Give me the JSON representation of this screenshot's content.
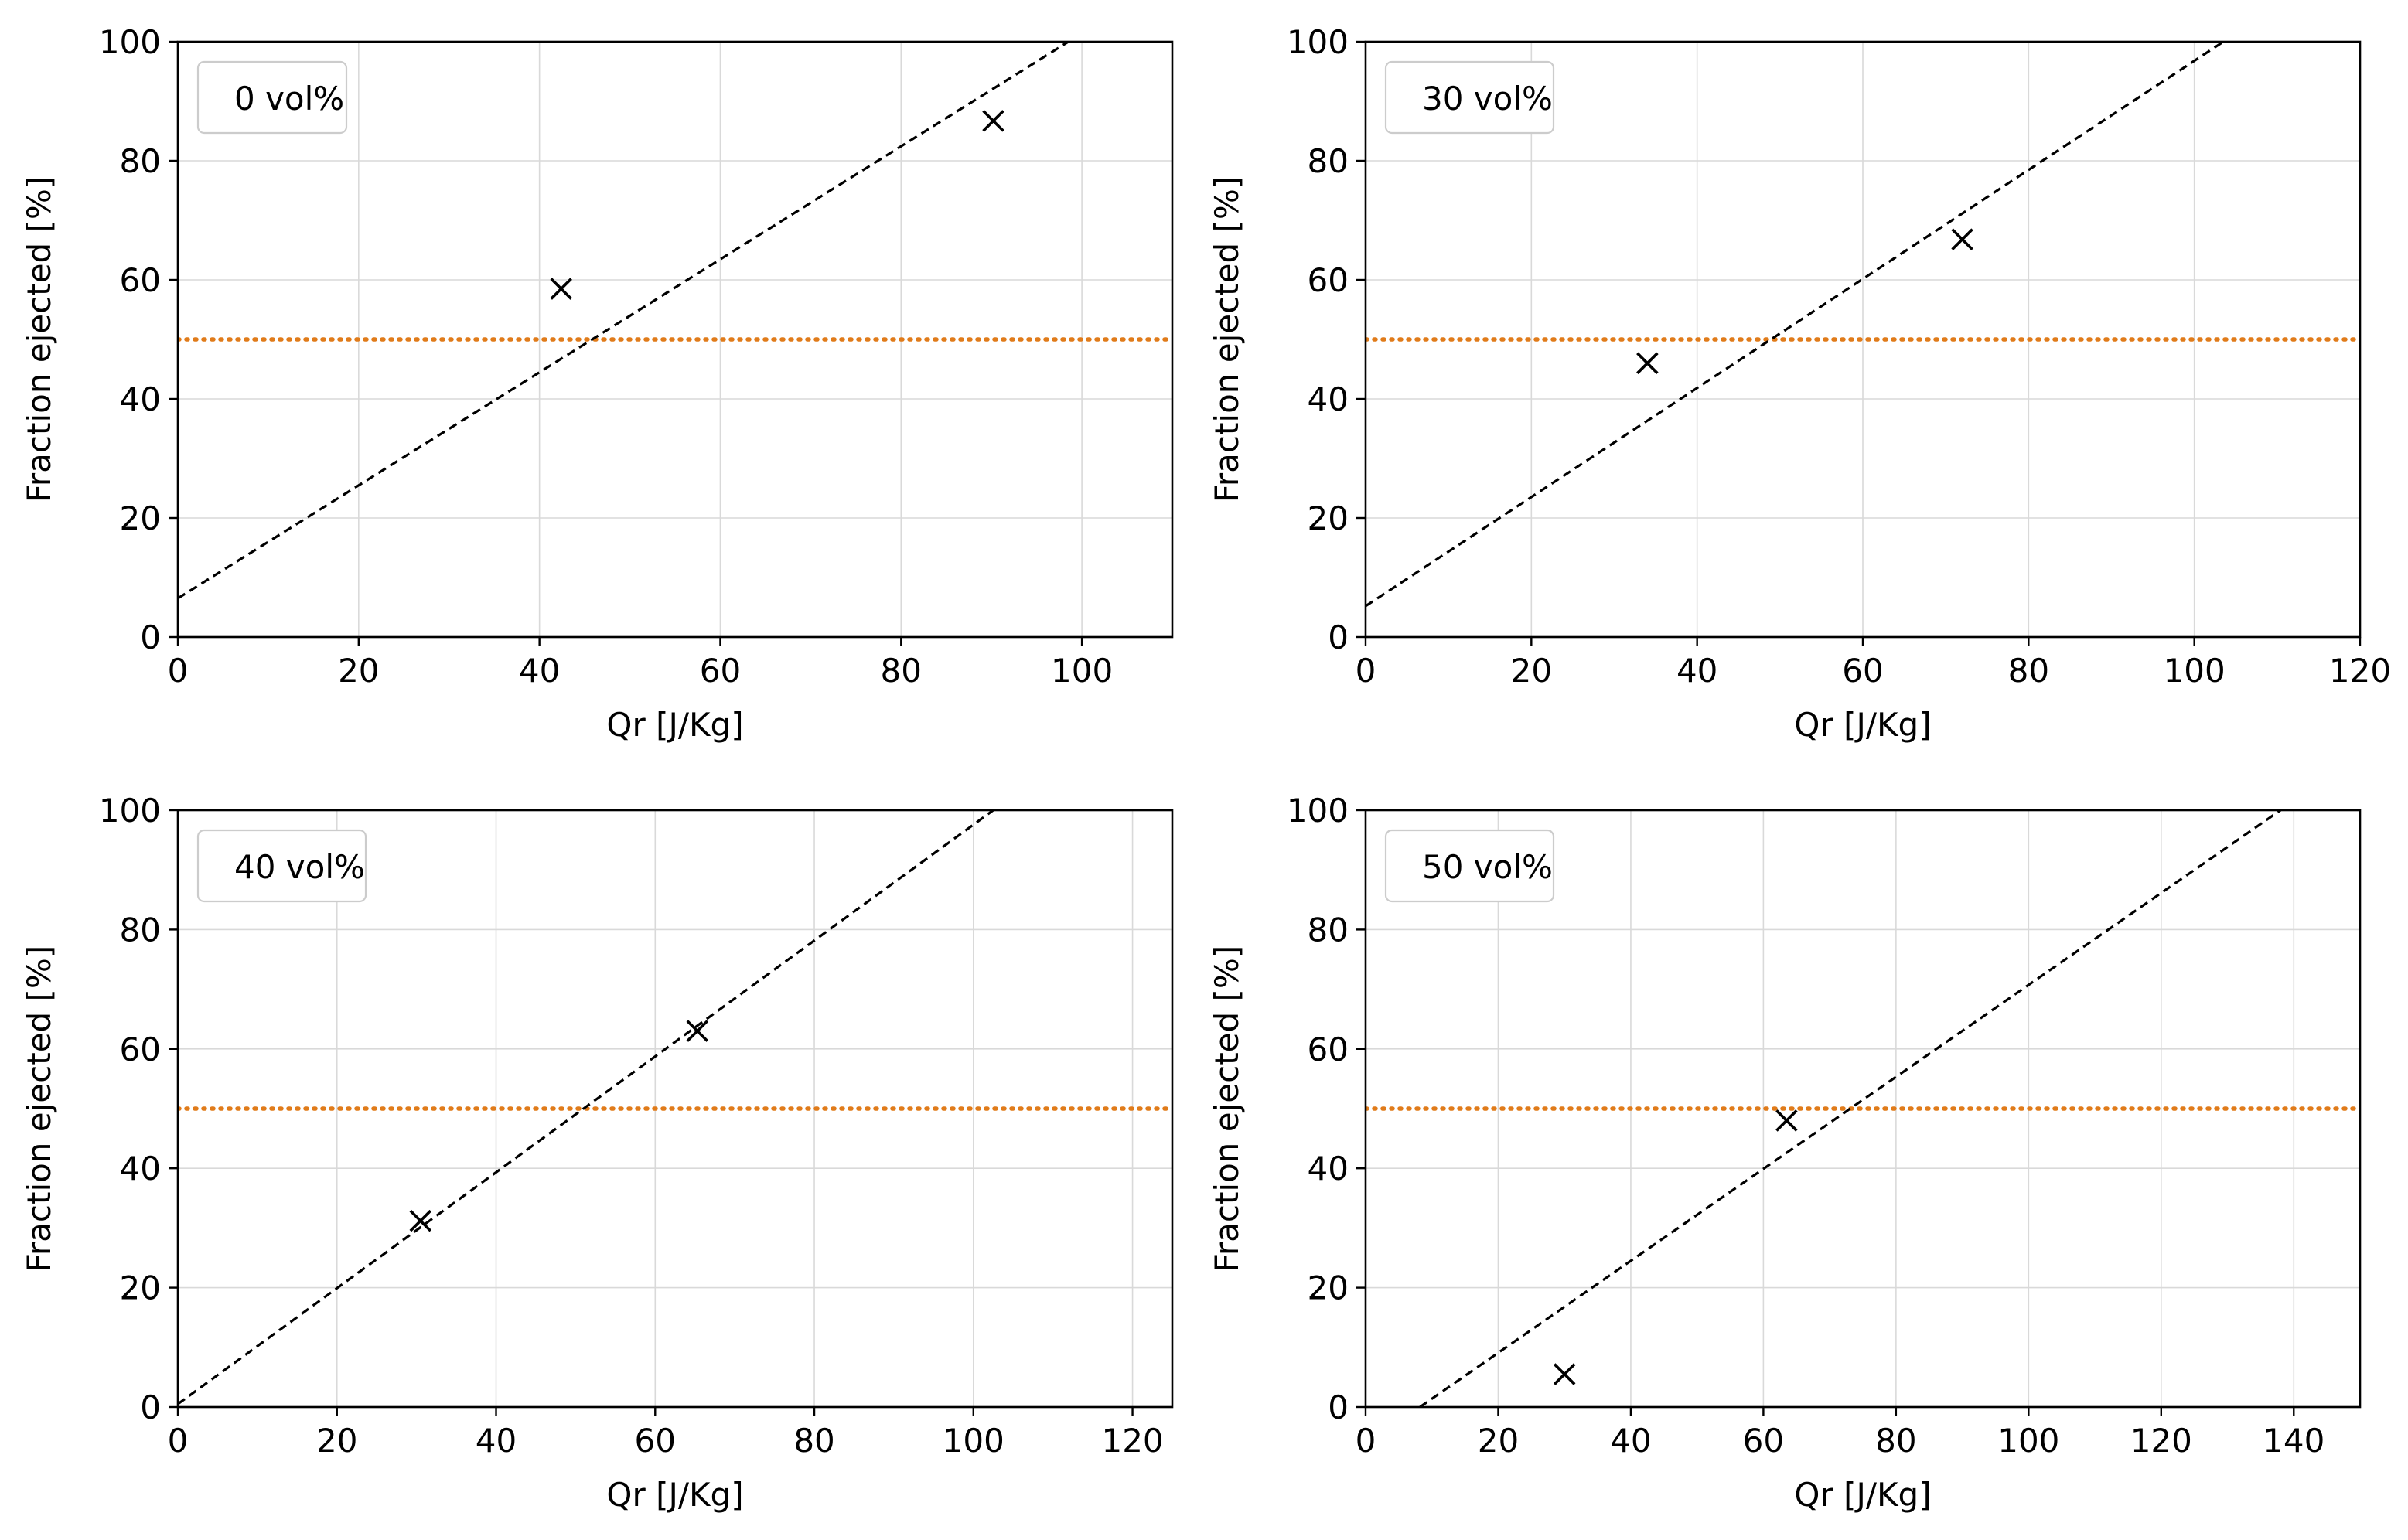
{
  "figure": {
    "colors": {
      "fit_line": "#000000",
      "threshold_line": "#e07b1a",
      "marker": "#000000",
      "grid": "#d9d9d9",
      "axes": "#000000",
      "legend_border": "#cccccc"
    }
  },
  "chart_data": [
    {
      "type": "scatter",
      "title": "",
      "legend": "0 vol%",
      "legend_location": "top-left",
      "xlabel": "Qr [J/Kg]",
      "ylabel": "Fraction ejected [%]",
      "xlim": [
        0,
        110
      ],
      "ylim": [
        0,
        100
      ],
      "xticks": [
        0,
        20,
        40,
        60,
        80,
        100
      ],
      "yticks": [
        0,
        20,
        40,
        60,
        80,
        100
      ],
      "grid": true,
      "points": [
        {
          "x": 42.4,
          "y": 58.5
        },
        {
          "x": 90.2,
          "y": 86.7
        }
      ],
      "fit_line": {
        "style": "dashed",
        "x": [
          0,
          98.5
        ],
        "y": [
          6.5,
          100
        ]
      },
      "threshold": {
        "style": "dotted",
        "y": 50
      }
    },
    {
      "type": "scatter",
      "title": "",
      "legend": "30 vol%",
      "legend_location": "top-left",
      "xlabel": "Qr [J/Kg]",
      "ylabel": "Fraction ejected [%]",
      "xlim": [
        0,
        120
      ],
      "ylim": [
        0,
        100
      ],
      "xticks": [
        0,
        20,
        40,
        60,
        80,
        100,
        120
      ],
      "yticks": [
        0,
        20,
        40,
        60,
        80,
        100
      ],
      "grid": true,
      "points": [
        {
          "x": 34.0,
          "y": 46.0
        },
        {
          "x": 72.0,
          "y": 66.8
        }
      ],
      "fit_line": {
        "style": "dashed",
        "x": [
          0,
          103.5
        ],
        "y": [
          5.2,
          100
        ]
      },
      "threshold": {
        "style": "dotted",
        "y": 50
      }
    },
    {
      "type": "scatter",
      "title": "",
      "legend": "40 vol%",
      "legend_location": "top-left",
      "xlabel": "Qr [J/Kg]",
      "ylabel": "Fraction ejected [%]",
      "xlim": [
        0,
        125
      ],
      "ylim": [
        0,
        100
      ],
      "xticks": [
        0,
        20,
        40,
        60,
        80,
        100,
        120
      ],
      "yticks": [
        0,
        20,
        40,
        60,
        80,
        100
      ],
      "grid": true,
      "points": [
        {
          "x": 30.5,
          "y": 31.2
        },
        {
          "x": 65.3,
          "y": 63.0
        }
      ],
      "fit_line": {
        "style": "dashed",
        "x": [
          0,
          102.5
        ],
        "y": [
          0.5,
          100
        ]
      },
      "threshold": {
        "style": "dotted",
        "y": 50
      }
    },
    {
      "type": "scatter",
      "title": "",
      "legend": "50 vol%",
      "legend_location": "top-left",
      "xlabel": "Qr [J/Kg]",
      "ylabel": "Fraction ejected [%]",
      "xlim": [
        0,
        150
      ],
      "ylim": [
        0,
        100
      ],
      "xticks": [
        0,
        20,
        40,
        60,
        80,
        100,
        120,
        140
      ],
      "yticks": [
        0,
        20,
        40,
        60,
        80,
        100
      ],
      "grid": true,
      "points": [
        {
          "x": 30.0,
          "y": 5.5
        },
        {
          "x": 63.5,
          "y": 48.0
        }
      ],
      "fit_line": {
        "style": "dashed",
        "x": [
          8.2,
          138.0
        ],
        "y": [
          0,
          100
        ]
      },
      "threshold": {
        "style": "dotted",
        "y": 50
      }
    }
  ]
}
